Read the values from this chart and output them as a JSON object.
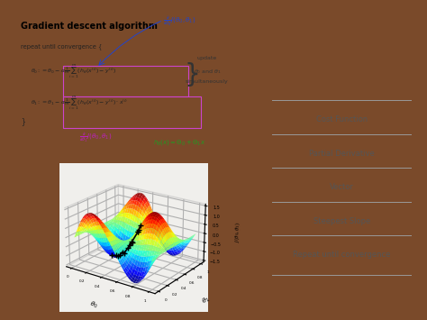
{
  "background_color": "#7a4a2a",
  "inner_bg": "#e8e5e0",
  "upper_panel_bg": "#f8f7f5",
  "lower_panel_bg": "#f0efec",
  "title": "Gradient descent algorithm",
  "legend_items": [
    "Cost Function",
    "Partial Derivative",
    "Vector",
    "Steepest Slope",
    "Repeat until convergence"
  ],
  "legend_line_color": "#999999",
  "legend_text_color": "#555555",
  "eq_color": "#222222",
  "blue_color": "#2244cc",
  "magenta_color": "#bb22bb",
  "green_color": "#229922",
  "box_color": "#cc44cc",
  "update_text_color": "#333333",
  "arrow_color": "#2244cc"
}
